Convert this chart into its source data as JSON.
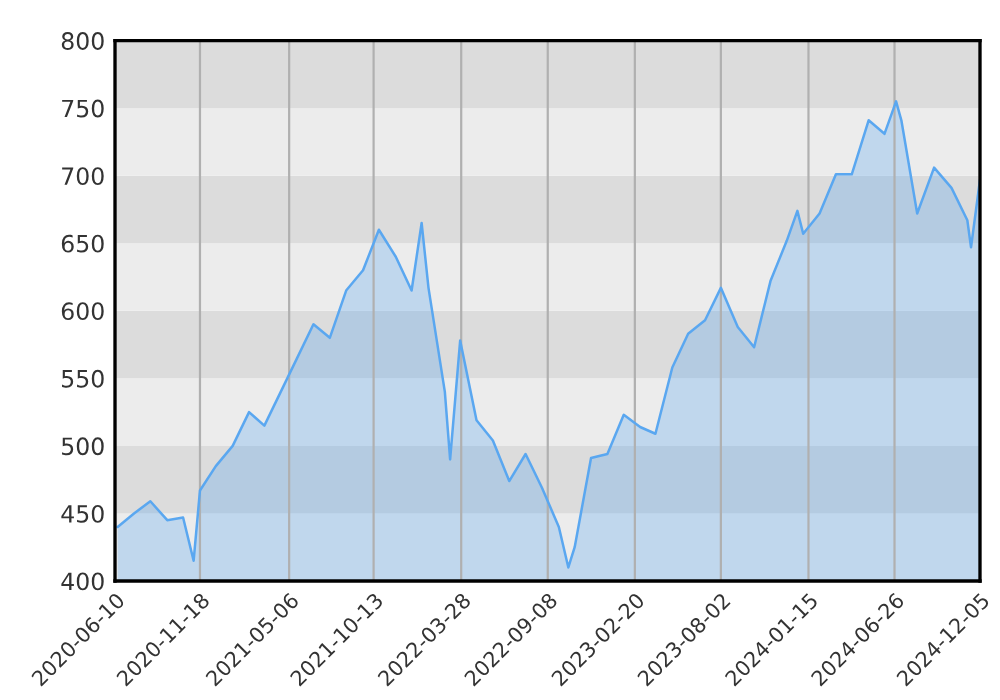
{
  "chart_data": {
    "type": "area",
    "x": [
      "2020-06-15",
      "2020-07-16",
      "2020-08-16",
      "2020-09-17",
      "2020-10-17",
      "2020-11-06",
      "2020-11-18",
      "2020-12-18",
      "2021-01-19",
      "2021-02-19",
      "2021-03-20",
      "2021-04-20",
      "2021-05-21",
      "2021-06-21",
      "2021-07-22",
      "2021-08-22",
      "2021-09-23",
      "2021-10-23",
      "2021-11-24",
      "2021-12-24",
      "2022-01-12",
      "2022-01-25",
      "2022-02-25",
      "2022-03-07",
      "2022-03-26",
      "2022-04-26",
      "2022-05-27",
      "2022-06-27",
      "2022-07-28",
      "2022-08-28",
      "2022-09-29",
      "2022-10-17",
      "2022-10-29",
      "2022-11-29",
      "2022-12-30",
      "2023-01-30",
      "2023-03-02",
      "2023-03-31",
      "2023-05-02",
      "2023-06-01",
      "2023-07-03",
      "2023-08-02",
      "2023-09-03",
      "2023-10-04",
      "2023-11-04",
      "2023-12-05",
      "2023-12-25",
      "2024-01-05",
      "2024-02-05",
      "2024-03-07",
      "2024-04-06",
      "2024-05-08",
      "2024-06-07",
      "2024-06-29",
      "2024-07-09",
      "2024-08-08",
      "2024-09-09",
      "2024-10-12",
      "2024-11-11",
      "2024-11-18",
      "2024-12-05"
    ],
    "series": [
      {
        "color": "#5aa7f0",
        "values": [
          440,
          450,
          459,
          445,
          447,
          415,
          467,
          485,
          500,
          525,
          515,
          540,
          565,
          590,
          580,
          615,
          630,
          660,
          640,
          615,
          665,
          617,
          540,
          490,
          578,
          519,
          504,
          474,
          494,
          469,
          440,
          410,
          425,
          491,
          494,
          523,
          514,
          509,
          558,
          583,
          593,
          617,
          588,
          573,
          622,
          652,
          674,
          657,
          672,
          701,
          701,
          741,
          731,
          755,
          741,
          672,
          706,
          691,
          667,
          647,
          697
        ]
      }
    ],
    "xlim": [
      "2020-06-10",
      "2024-12-05"
    ],
    "xticks": [
      "2020-06-10",
      "2020-11-18",
      "2021-05-06",
      "2021-10-13",
      "2022-03-28",
      "2022-09-08",
      "2023-02-20",
      "2023-08-02",
      "2024-01-15",
      "2024-06-26",
      "2024-12-05"
    ],
    "ylim": [
      400,
      800
    ],
    "yticks": [
      400,
      450,
      500,
      550,
      600,
      650,
      700,
      750,
      800
    ],
    "bands": [
      {
        "axis": "y",
        "from": 400,
        "to": 450,
        "color": "#ececec"
      },
      {
        "axis": "y",
        "from": 450,
        "to": 500,
        "color": "#dcdcdc"
      },
      {
        "axis": "y",
        "from": 500,
        "to": 550,
        "color": "#ececec"
      },
      {
        "axis": "y",
        "from": 550,
        "to": 600,
        "color": "#dcdcdc"
      },
      {
        "axis": "y",
        "from": 600,
        "to": 650,
        "color": "#ececec"
      },
      {
        "axis": "y",
        "from": 650,
        "to": 700,
        "color": "#dcdcdc"
      },
      {
        "axis": "y",
        "from": 700,
        "to": 750,
        "color": "#ececec"
      },
      {
        "axis": "y",
        "from": 750,
        "to": 800,
        "color": "#dcdcdc"
      }
    ],
    "grid": "x",
    "legend": false
  }
}
